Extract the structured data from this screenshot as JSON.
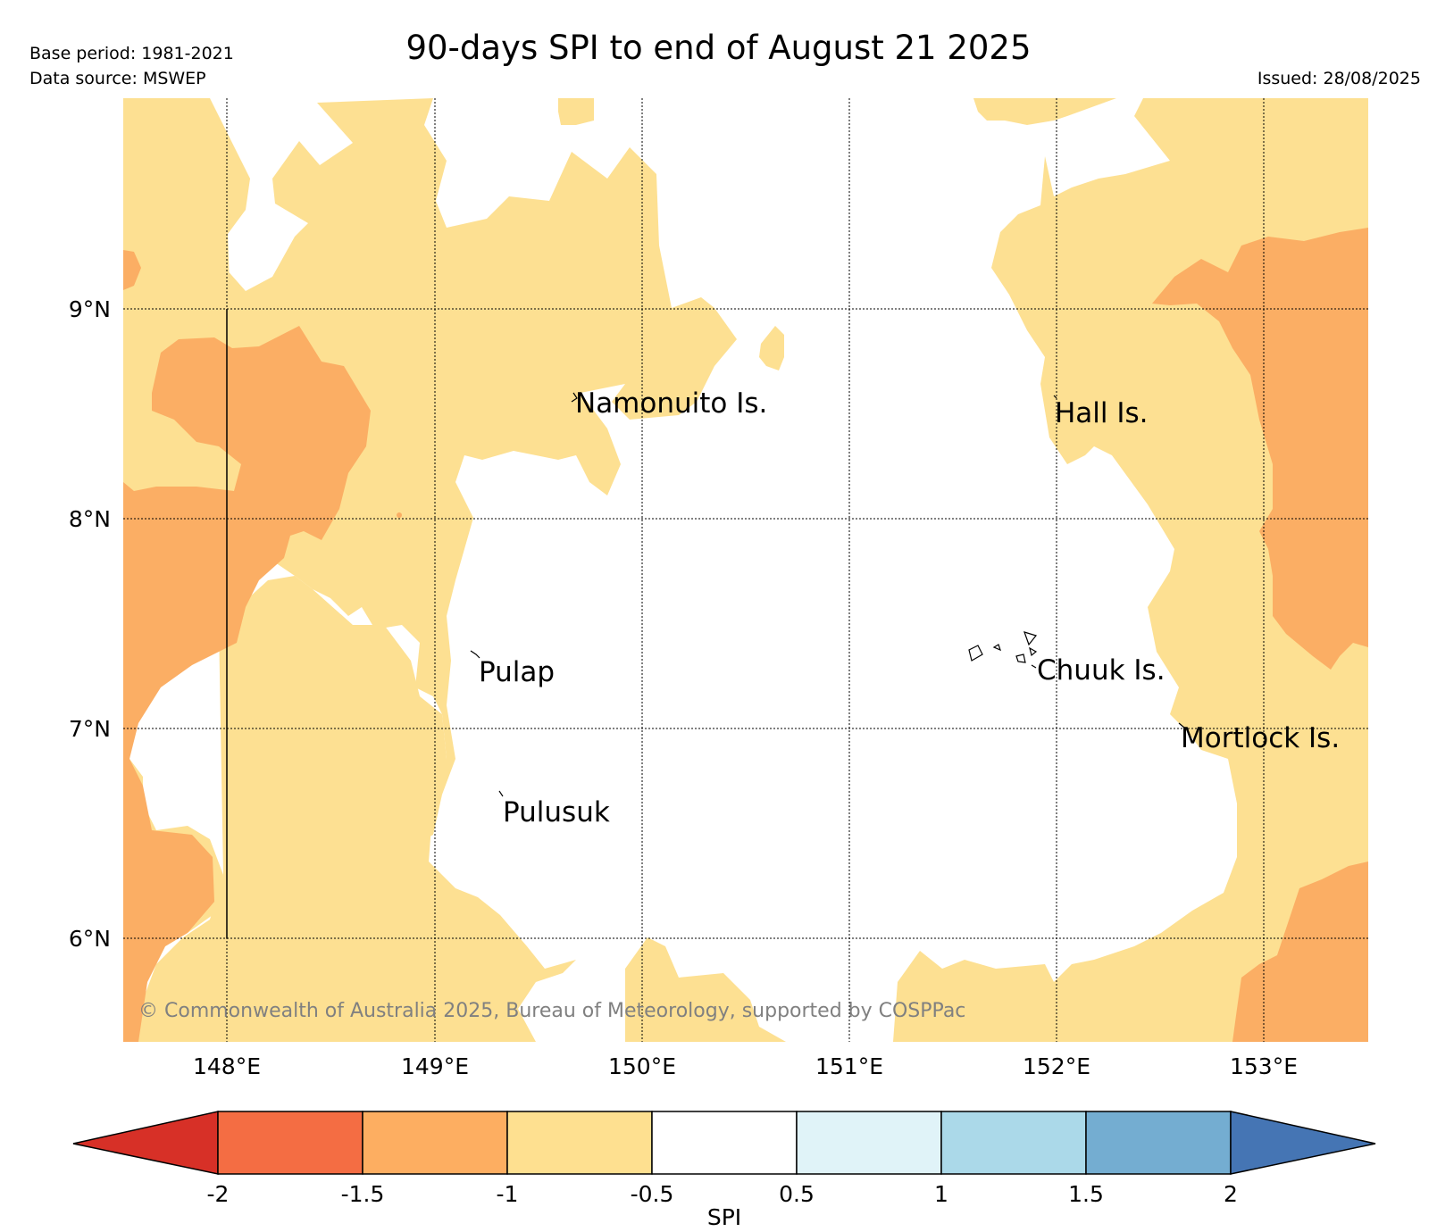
{
  "header": {
    "title": "90-days SPI to end of August 21 2025",
    "base_period": "Base period: 1981-2021",
    "data_source": "Data source: MSWEP",
    "issued": "Issued: 28/08/2025"
  },
  "map": {
    "lon_ticks": [
      "148°E",
      "149°E",
      "150°E",
      "151°E",
      "152°E",
      "153°E"
    ],
    "lat_ticks": [
      "9°N",
      "8°N",
      "7°N",
      "6°N"
    ],
    "places": [
      {
        "name": "Namonuito Is."
      },
      {
        "name": "Hall Is."
      },
      {
        "name": "Pulap"
      },
      {
        "name": "Chuuk Is."
      },
      {
        "name": "Mortlock Is."
      },
      {
        "name": "Pulusuk"
      }
    ],
    "copyright": "© Commonwealth of Australia 2025, Bureau of Meteorology, supported by COSPPac",
    "colors": {
      "spi_-1_to_-0.5": "#fde092",
      "spi_-1.5_to_-1": "#fbae64",
      "spi_-0.5_to_0.5": "#ffffff"
    }
  },
  "legend": {
    "label": "SPI",
    "ticks": [
      "-2",
      "-1.5",
      "-1",
      "-0.5",
      "0.5",
      "1",
      "1.5",
      "2"
    ],
    "colors": {
      "below_-2": "#d73027",
      "-2_to_-1.5": "#f46d43",
      "-1.5_to_-1": "#fdae61",
      "-1_to_-0.5": "#fee090",
      "-0.5_to_0.5": "#ffffff",
      "0.5_to_1": "#e0f3f8",
      "1_to_1.5": "#abd9e9",
      "1.5_to_2": "#74add1",
      "above_2": "#4575b4"
    }
  }
}
